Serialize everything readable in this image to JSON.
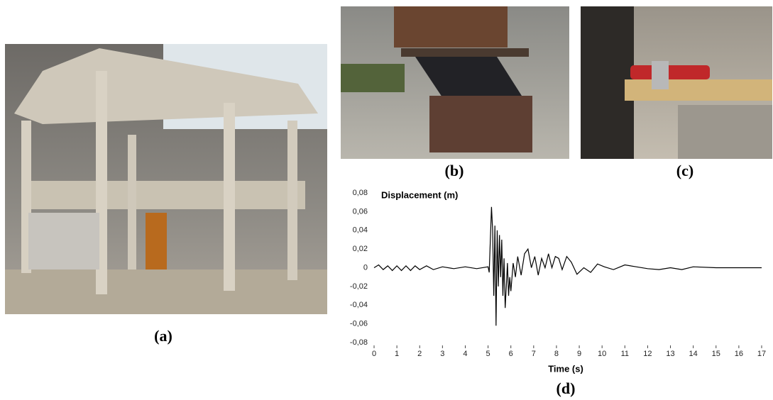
{
  "captions": [
    "(a)",
    "(b)",
    "(c)",
    "(d)"
  ],
  "chart_data": {
    "type": "line",
    "ylabel": "Displacement (m)",
    "xlabel": "Time (s)",
    "xlim": [
      0,
      17
    ],
    "xticks": [
      0,
      1,
      2,
      3,
      4,
      5,
      6,
      7,
      8,
      9,
      10,
      11,
      12,
      13,
      14,
      15,
      16,
      17
    ],
    "ylim": [
      -0.08,
      0.08
    ],
    "yticks": [
      {
        "value": 0.08,
        "label": "0,08"
      },
      {
        "value": 0.06,
        "label": "0,06"
      },
      {
        "value": 0.04,
        "label": "0,04"
      },
      {
        "value": 0.02,
        "label": "0,02"
      },
      0,
      {
        "value": -0.02,
        "label": "-0,02"
      },
      {
        "value": -0.04,
        "label": "-0,04"
      },
      {
        "value": -0.06,
        "label": "-0,06"
      },
      {
        "value": -0.08,
        "label": "-0,08"
      }
    ],
    "series": [
      {
        "color": "#000000",
        "x": [
          0,
          0.2,
          0.4,
          0.6,
          0.8,
          1.0,
          1.2,
          1.4,
          1.6,
          1.8,
          2.0,
          2.3,
          2.6,
          3.0,
          3.5,
          4.0,
          4.5,
          5.0,
          5.05,
          5.1,
          5.15,
          5.2,
          5.25,
          5.3,
          5.35,
          5.4,
          5.45,
          5.5,
          5.55,
          5.6,
          5.65,
          5.7,
          5.75,
          5.8,
          5.85,
          5.9,
          5.95,
          6.0,
          6.1,
          6.2,
          6.3,
          6.45,
          6.6,
          6.75,
          6.9,
          7.05,
          7.2,
          7.35,
          7.5,
          7.65,
          7.8,
          7.95,
          8.1,
          8.25,
          8.45,
          8.65,
          8.9,
          9.2,
          9.5,
          9.8,
          10.1,
          10.5,
          11.0,
          11.5,
          12.0,
          12.5,
          13.0,
          13.5,
          14.0,
          15.0,
          16.0,
          17.0
        ],
        "values": [
          0,
          0.003,
          -0.002,
          0.002,
          -0.003,
          0.002,
          -0.003,
          0.002,
          -0.003,
          0.002,
          -0.002,
          0.002,
          -0.002,
          0.001,
          -0.001,
          0.001,
          -0.001,
          0.001,
          -0.005,
          0.03,
          0.065,
          0.04,
          -0.03,
          0.045,
          -0.062,
          0.04,
          -0.02,
          0.035,
          -0.01,
          0.03,
          -0.03,
          0.01,
          -0.043,
          -0.02,
          0.005,
          -0.03,
          -0.01,
          -0.025,
          0.005,
          -0.01,
          0.012,
          -0.008,
          0.015,
          0.02,
          0.0,
          0.012,
          -0.008,
          0.01,
          0.0,
          0.015,
          0.0,
          0.012,
          0.01,
          -0.002,
          0.012,
          0.006,
          -0.007,
          0.0,
          -0.005,
          0.004,
          0.001,
          -0.002,
          0.003,
          0.001,
          -0.001,
          -0.002,
          0.0,
          -0.002,
          0.001,
          0.0,
          0.0,
          0.0
        ]
      }
    ]
  }
}
